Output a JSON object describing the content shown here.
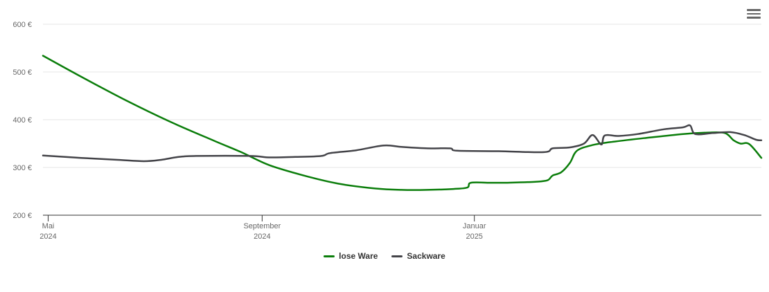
{
  "chart_data": {
    "type": "line",
    "y_tick_labels": [
      "200 €",
      "300 €",
      "400 €",
      "500 €",
      "600 €"
    ],
    "y_ticks": [
      200,
      300,
      400,
      500,
      600
    ],
    "ylim": [
      200,
      600
    ],
    "xlim": [
      "2024-04-28",
      "2025-06-15"
    ],
    "x_ticks": [
      {
        "date": "2024-05-01",
        "line1": "Mai",
        "line2": "2024"
      },
      {
        "date": "2024-09-01",
        "line1": "September",
        "line2": "2024"
      },
      {
        "date": "2025-01-01",
        "line1": "Januar",
        "line2": "2025"
      }
    ],
    "grid": "horizontal",
    "legend_position": "bottom-center",
    "series": [
      {
        "name": "lose Ware",
        "color": "#0a7d0a",
        "points": [
          [
            "2024-04-28",
            534
          ],
          [
            "2024-05-20",
            490
          ],
          [
            "2024-06-15",
            440
          ],
          [
            "2024-07-10",
            396
          ],
          [
            "2024-08-05",
            355
          ],
          [
            "2024-08-20",
            332
          ],
          [
            "2024-09-05",
            305
          ],
          [
            "2024-09-25",
            283
          ],
          [
            "2024-10-15",
            266
          ],
          [
            "2024-11-05",
            256
          ],
          [
            "2024-11-20",
            253
          ],
          [
            "2024-12-05",
            253
          ],
          [
            "2024-12-20",
            255
          ],
          [
            "2024-12-28",
            258
          ],
          [
            "2024-12-30",
            268
          ],
          [
            "2025-01-10",
            268
          ],
          [
            "2025-01-20",
            268
          ],
          [
            "2025-02-05",
            270
          ],
          [
            "2025-02-12",
            273
          ],
          [
            "2025-02-15",
            283
          ],
          [
            "2025-02-20",
            290
          ],
          [
            "2025-02-25",
            310
          ],
          [
            "2025-03-01",
            335
          ],
          [
            "2025-03-10",
            347
          ],
          [
            "2025-03-20",
            353
          ],
          [
            "2025-04-10",
            362
          ],
          [
            "2025-05-01",
            370
          ],
          [
            "2025-05-15",
            373
          ],
          [
            "2025-05-25",
            372
          ],
          [
            "2025-05-30",
            357
          ],
          [
            "2025-06-03",
            350
          ],
          [
            "2025-06-08",
            349
          ],
          [
            "2025-06-15",
            320
          ]
        ]
      },
      {
        "name": "Sackware",
        "color": "#434348",
        "points": [
          [
            "2024-04-28",
            325
          ],
          [
            "2024-05-20",
            320
          ],
          [
            "2024-06-10",
            316
          ],
          [
            "2024-06-25",
            313
          ],
          [
            "2024-07-05",
            316
          ],
          [
            "2024-07-15",
            322
          ],
          [
            "2024-07-25",
            324
          ],
          [
            "2024-08-25",
            324
          ],
          [
            "2024-09-05",
            321
          ],
          [
            "2024-09-20",
            322
          ],
          [
            "2024-10-05",
            324
          ],
          [
            "2024-10-10",
            330
          ],
          [
            "2024-10-25",
            336
          ],
          [
            "2024-11-10",
            346
          ],
          [
            "2024-11-20",
            343
          ],
          [
            "2024-12-05",
            340
          ],
          [
            "2024-12-18",
            340
          ],
          [
            "2024-12-22",
            335
          ],
          [
            "2025-01-15",
            334
          ],
          [
            "2025-02-10",
            332
          ],
          [
            "2025-02-15",
            340
          ],
          [
            "2025-02-25",
            342
          ],
          [
            "2025-03-05",
            350
          ],
          [
            "2025-03-10",
            368
          ],
          [
            "2025-03-15",
            348
          ],
          [
            "2025-03-17",
            367
          ],
          [
            "2025-03-25",
            366
          ],
          [
            "2025-04-05",
            370
          ],
          [
            "2025-04-20",
            380
          ],
          [
            "2025-05-01",
            384
          ],
          [
            "2025-05-05",
            388
          ],
          [
            "2025-05-08",
            370
          ],
          [
            "2025-05-18",
            372
          ],
          [
            "2025-05-28",
            374
          ],
          [
            "2025-06-05",
            368
          ],
          [
            "2025-06-12",
            358
          ],
          [
            "2025-06-15",
            357
          ]
        ]
      }
    ]
  },
  "menu_icon": "hamburger-menu-icon"
}
